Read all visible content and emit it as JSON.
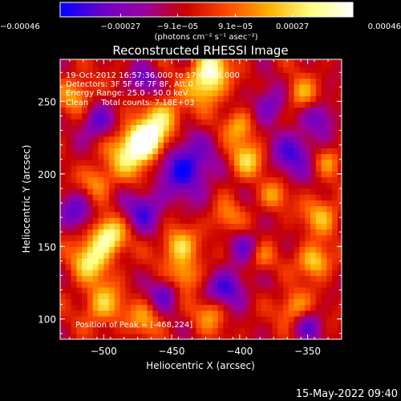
{
  "chart_data": {
    "type": "heatmap",
    "title": "Reconstructed RHESSI Image",
    "xlabel": "Heliocentric X (arcsec)",
    "ylabel": "Heliocentric Y (arcsec)",
    "xlim": [
      -532,
      -325
    ],
    "ylim": [
      86,
      279
    ],
    "x_ticks": [
      -500,
      -450,
      -400,
      -350
    ],
    "y_ticks": [
      100,
      150,
      200,
      250
    ],
    "x_tick_labels": [
      "−500",
      "−450",
      "−400",
      "−350"
    ],
    "y_tick_labels": [
      "100",
      "150",
      "200",
      "250"
    ],
    "colorbar": {
      "range": [
        -0.00046,
        0.00046
      ],
      "ticks": [
        -0.00046,
        -0.00027,
        -9.1e-05,
        9.1e-05,
        0.00027,
        0.00046
      ],
      "tick_labels": [
        "−0.00046",
        "−0.00027",
        "−9.1e−05",
        "9.1e−05",
        "0.00027",
        "0.00046"
      ],
      "unit_label": "(photons cm⁻² s⁻¹ asec⁻²)",
      "colormap_stops": [
        "#0000ff",
        "#6a00c8",
        "#9b00a0",
        "#c80000",
        "#ff4b00",
        "#ffb000",
        "#ffff80",
        "#ffffff"
      ]
    },
    "annotations": [
      "19-Oct-2012 16:57:36.000 to 17:03:36.000",
      "Detectors: 3F 5F 6F 7F 8F, Att 0",
      "Energy Range: 25.0 - 50.0 keV",
      "Clean     Total counts: 7.18E+03"
    ],
    "peak_label": "Position of Peak = [-468,224]",
    "peak_position": [
      -468,
      224
    ],
    "heatmap_grid": {
      "x_start": -532,
      "y_start": 86,
      "pixel_arcsec": 4,
      "nx": 52,
      "ny": 49
    },
    "hotspots": [
      {
        "x": -468,
        "y": 224,
        "sigma": 9,
        "amp": 1.0
      },
      {
        "x": -480,
        "y": 215,
        "sigma": 12,
        "amp": 0.75
      },
      {
        "x": -455,
        "y": 240,
        "sigma": 10,
        "amp": 0.6
      },
      {
        "x": -497,
        "y": 157,
        "sigma": 9,
        "amp": 0.85
      },
      {
        "x": -510,
        "y": 140,
        "sigma": 10,
        "amp": 0.7
      },
      {
        "x": -425,
        "y": 262,
        "sigma": 10,
        "amp": 0.75
      },
      {
        "x": -420,
        "y": 275,
        "sigma": 8,
        "amp": 0.65
      },
      {
        "x": -395,
        "y": 210,
        "sigma": 9,
        "amp": 0.6
      },
      {
        "x": -400,
        "y": 233,
        "sigma": 8,
        "amp": 0.5
      },
      {
        "x": -445,
        "y": 150,
        "sigma": 9,
        "amp": 0.65
      },
      {
        "x": -440,
        "y": 130,
        "sigma": 8,
        "amp": 0.55
      },
      {
        "x": -345,
        "y": 140,
        "sigma": 8,
        "amp": 0.7
      },
      {
        "x": -340,
        "y": 172,
        "sigma": 9,
        "amp": 0.55
      },
      {
        "x": -360,
        "y": 108,
        "sigma": 8,
        "amp": 0.55
      },
      {
        "x": -355,
        "y": 255,
        "sigma": 8,
        "amp": 0.5
      },
      {
        "x": -520,
        "y": 255,
        "sigma": 9,
        "amp": 0.5
      },
      {
        "x": -500,
        "y": 110,
        "sigma": 10,
        "amp": 0.6
      },
      {
        "x": -470,
        "y": 100,
        "sigma": 8,
        "amp": 0.45
      },
      {
        "x": -420,
        "y": 105,
        "sigma": 9,
        "amp": 0.5
      },
      {
        "x": -410,
        "y": 170,
        "sigma": 8,
        "amp": 0.4
      },
      {
        "x": -375,
        "y": 185,
        "sigma": 7,
        "amp": 0.45
      },
      {
        "x": -505,
        "y": 195,
        "sigma": 8,
        "amp": 0.45
      },
      {
        "x": -385,
        "y": 143,
        "sigma": 7,
        "amp": 0.4
      },
      {
        "x": -335,
        "y": 210,
        "sigma": 7,
        "amp": 0.4
      }
    ],
    "coldspots": [
      {
        "x": -440,
        "y": 205,
        "sigma": 14,
        "amp": 0.75
      },
      {
        "x": -410,
        "y": 120,
        "sigma": 10,
        "amp": 0.7
      },
      {
        "x": -470,
        "y": 175,
        "sigma": 10,
        "amp": 0.55
      },
      {
        "x": -360,
        "y": 215,
        "sigma": 11,
        "amp": 0.6
      },
      {
        "x": -505,
        "y": 235,
        "sigma": 9,
        "amp": 0.55
      },
      {
        "x": -378,
        "y": 248,
        "sigma": 9,
        "amp": 0.5
      },
      {
        "x": -455,
        "y": 118,
        "sigma": 8,
        "amp": 0.5
      },
      {
        "x": -520,
        "y": 175,
        "sigma": 9,
        "amp": 0.5
      },
      {
        "x": -395,
        "y": 150,
        "sigma": 8,
        "amp": 0.45
      },
      {
        "x": -350,
        "y": 95,
        "sigma": 8,
        "amp": 0.45
      },
      {
        "x": -340,
        "y": 240,
        "sigma": 8,
        "amp": 0.45
      },
      {
        "x": -470,
        "y": 265,
        "sigma": 8,
        "amp": 0.45
      }
    ]
  },
  "footer": {
    "timestamp": "15-May-2022 09:40"
  }
}
